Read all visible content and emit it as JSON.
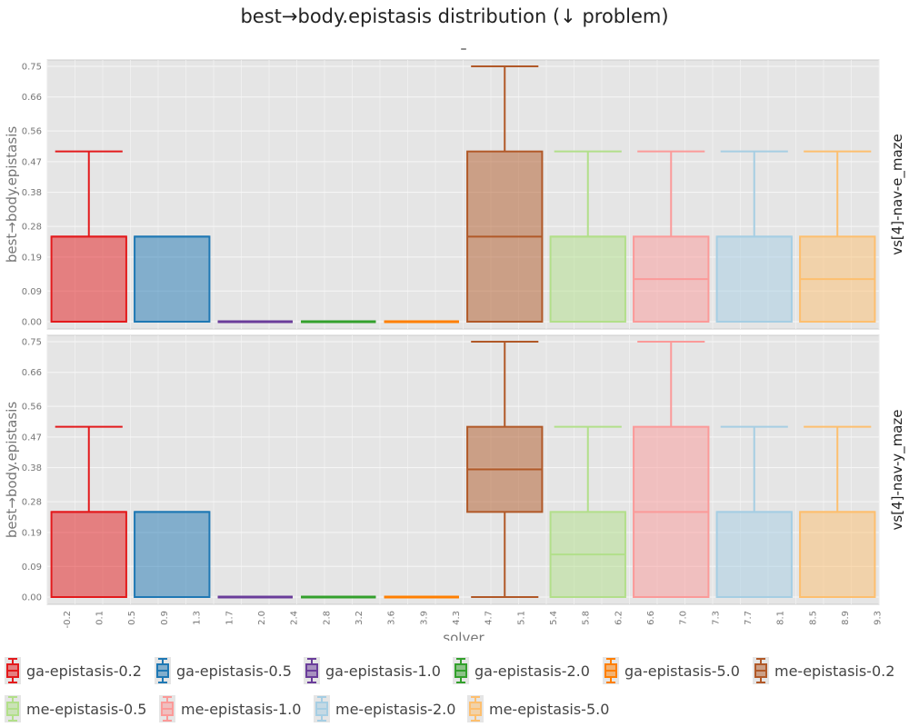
{
  "chart_data": {
    "type": "box",
    "title": "best→body.epistasis distribution (↓ problem)",
    "subtitle": "–",
    "xlabel": "solver",
    "ylabel": "best→body.epistasis",
    "ylim": [
      0,
      0.75
    ],
    "y_ticks": [
      "0.00",
      "0.09",
      "0.19",
      "0.28",
      "0.38",
      "0.47",
      "0.56",
      "0.66",
      "0.75"
    ],
    "x_ticks": [
      "-0.2",
      "0.1",
      "0.5",
      "0.9",
      "1.3",
      "1.7",
      "2.0",
      "2.4",
      "2.8",
      "3.2",
      "3.6",
      "3.9",
      "4.3",
      "4.7",
      "5.1",
      "5.4",
      "5.8",
      "6.2",
      "6.6",
      "7.0",
      "7.3",
      "7.7",
      "8.1",
      "8.5",
      "8.9",
      "9.3"
    ],
    "grid": true,
    "legend_position": "bottom",
    "series": [
      {
        "name": "ga-epistasis-0.2",
        "color": "#e31a1c"
      },
      {
        "name": "ga-epistasis-0.5",
        "color": "#1f78b4"
      },
      {
        "name": "ga-epistasis-1.0",
        "color": "#6a3d9a"
      },
      {
        "name": "ga-epistasis-2.0",
        "color": "#33a02c"
      },
      {
        "name": "ga-epistasis-5.0",
        "color": "#ff7f00"
      },
      {
        "name": "me-epistasis-0.2",
        "color": "#b15928"
      },
      {
        "name": "me-epistasis-0.5",
        "color": "#b2df8a"
      },
      {
        "name": "me-epistasis-1.0",
        "color": "#fb9a99"
      },
      {
        "name": "me-epistasis-2.0",
        "color": "#a6cee3"
      },
      {
        "name": "me-epistasis-5.0",
        "color": "#fdbf6f"
      }
    ],
    "panels": [
      {
        "label": "vs[4]-nav-e_maze",
        "boxes": [
          {
            "min": 0,
            "q1": 0,
            "median": 0.25,
            "q3": 0.25,
            "max": 0.5
          },
          {
            "min": 0,
            "q1": 0,
            "median": 0.25,
            "q3": 0.25,
            "max": 0.25
          },
          {
            "min": 0,
            "q1": 0,
            "median": 0,
            "q3": 0,
            "max": 0
          },
          {
            "min": 0,
            "q1": 0,
            "median": 0,
            "q3": 0,
            "max": 0
          },
          {
            "min": 0,
            "q1": 0,
            "median": 0,
            "q3": 0,
            "max": 0
          },
          {
            "min": 0,
            "q1": 0,
            "median": 0.25,
            "q3": 0.5,
            "max": 0.75
          },
          {
            "min": 0,
            "q1": 0,
            "median": 0.25,
            "q3": 0.25,
            "max": 0.5
          },
          {
            "min": 0,
            "q1": 0,
            "median": 0.125,
            "q3": 0.25,
            "max": 0.5
          },
          {
            "min": 0,
            "q1": 0,
            "median": 0.25,
            "q3": 0.25,
            "max": 0.5
          },
          {
            "min": 0,
            "q1": 0,
            "median": 0.125,
            "q3": 0.25,
            "max": 0.5
          }
        ]
      },
      {
        "label": "vs[4]-nav-y_maze",
        "boxes": [
          {
            "min": 0,
            "q1": 0,
            "median": 0.25,
            "q3": 0.25,
            "max": 0.5
          },
          {
            "min": 0,
            "q1": 0,
            "median": 0.25,
            "q3": 0.25,
            "max": 0.25
          },
          {
            "min": 0,
            "q1": 0,
            "median": 0,
            "q3": 0,
            "max": 0
          },
          {
            "min": 0,
            "q1": 0,
            "median": 0,
            "q3": 0,
            "max": 0
          },
          {
            "min": 0,
            "q1": 0,
            "median": 0,
            "q3": 0,
            "max": 0
          },
          {
            "min": 0,
            "q1": 0.25,
            "median": 0.375,
            "q3": 0.5,
            "max": 0.75
          },
          {
            "min": 0,
            "q1": 0,
            "median": 0.125,
            "q3": 0.25,
            "max": 0.5
          },
          {
            "min": 0,
            "q1": 0,
            "median": 0.25,
            "q3": 0.5,
            "max": 0.75
          },
          {
            "min": 0,
            "q1": 0,
            "median": 0.25,
            "q3": 0.25,
            "max": 0.5
          },
          {
            "min": 0,
            "q1": 0,
            "median": 0.25,
            "q3": 0.25,
            "max": 0.5
          }
        ]
      }
    ]
  }
}
